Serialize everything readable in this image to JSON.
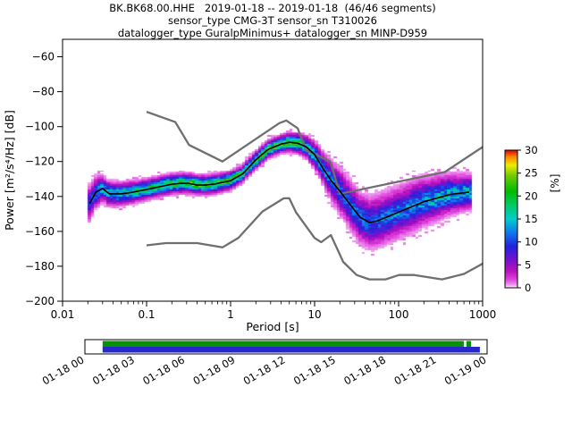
{
  "chart_data": {
    "type": "heatmap",
    "title": "BK.BK68.00.HHE   2019-01-18 -- 2019-01-18  (46/46 segments)",
    "subtitle_sensor": "sensor_type CMG-3T sensor_sn T310026",
    "subtitle_datalogger": "datalogger_type GuralpMinimus+ datalogger_sn MINP-D959",
    "xlabel": "Period [s]",
    "ylabel": "Power [m²/s⁴/Hz] [dB]",
    "xscale": "log",
    "xlim": [
      0.01,
      1000
    ],
    "ylim": [
      -200,
      -50
    ],
    "xticks": [
      0.01,
      0.1,
      1,
      10,
      100,
      1000
    ],
    "yticks": [
      -200,
      -180,
      -160,
      -140,
      -120,
      -100,
      -80,
      -60
    ],
    "colorbar": {
      "label": "[%]",
      "min": 0,
      "max": 30,
      "ticks": [
        0,
        5,
        10,
        15,
        20,
        25,
        30
      ]
    },
    "colormap": [
      [
        0.0,
        "#ffffff"
      ],
      [
        0.02,
        "#ee99ee"
      ],
      [
        0.06,
        "#dd44dd"
      ],
      [
        0.12,
        "#bb11bb"
      ],
      [
        0.2,
        "#7711cc"
      ],
      [
        0.3,
        "#2222dd"
      ],
      [
        0.4,
        "#1177ee"
      ],
      [
        0.5,
        "#00cccc"
      ],
      [
        0.6,
        "#00cc66"
      ],
      [
        0.7,
        "#00bb00"
      ],
      [
        0.82,
        "#77cc00"
      ],
      [
        0.89,
        "#eeee00"
      ],
      [
        0.95,
        "#ff8800"
      ],
      [
        1.0,
        "#dd0000"
      ]
    ],
    "mode_line": [
      [
        0.021,
        -144
      ],
      [
        0.025,
        -137.5
      ],
      [
        0.03,
        -135.5
      ],
      [
        0.036,
        -138.5
      ],
      [
        0.05,
        -138.5
      ],
      [
        0.07,
        -137.5
      ],
      [
        0.1,
        -136
      ],
      [
        0.14,
        -134.5
      ],
      [
        0.2,
        -133
      ],
      [
        0.25,
        -132.5
      ],
      [
        0.32,
        -132.5
      ],
      [
        0.4,
        -133.5
      ],
      [
        0.5,
        -133.5
      ],
      [
        0.63,
        -133
      ],
      [
        0.79,
        -132
      ],
      [
        1.0,
        -131
      ],
      [
        1.4,
        -127
      ],
      [
        2.0,
        -119
      ],
      [
        2.8,
        -113
      ],
      [
        4.0,
        -110
      ],
      [
        5.0,
        -109
      ],
      [
        6.3,
        -109.5
      ],
      [
        7.9,
        -111.5
      ],
      [
        10,
        -116
      ],
      [
        12.6,
        -124
      ],
      [
        15.8,
        -131
      ],
      [
        20,
        -137
      ],
      [
        25,
        -143
      ],
      [
        30,
        -148
      ],
      [
        35,
        -152
      ],
      [
        45,
        -155
      ],
      [
        56,
        -154
      ],
      [
        71,
        -152
      ],
      [
        100,
        -149
      ],
      [
        141,
        -146
      ],
      [
        200,
        -143
      ],
      [
        282,
        -141
      ],
      [
        400,
        -139
      ],
      [
        560,
        -138
      ],
      [
        690,
        -137.5
      ]
    ],
    "noise_model_high": [
      [
        0.1,
        -91.5
      ],
      [
        0.22,
        -97.4
      ],
      [
        0.32,
        -110.5
      ],
      [
        0.8,
        -120.0
      ],
      [
        3.8,
        -98.0
      ],
      [
        4.6,
        -96.5
      ],
      [
        6.3,
        -101.0
      ],
      [
        7.9,
        -113.5
      ],
      [
        15.4,
        -120.0
      ],
      [
        20.0,
        -138.5
      ],
      [
        354.8,
        -126.0
      ],
      [
        1000,
        -111.7
      ]
    ],
    "noise_model_low": [
      [
        0.1,
        -168.0
      ],
      [
        0.17,
        -166.7
      ],
      [
        0.4,
        -166.7
      ],
      [
        0.8,
        -169.2
      ],
      [
        1.24,
        -163.7
      ],
      [
        2.4,
        -148.6
      ],
      [
        4.3,
        -141.1
      ],
      [
        5.0,
        -141.1
      ],
      [
        6.0,
        -149.0
      ],
      [
        10.0,
        -163.8
      ],
      [
        12.0,
        -166.2
      ],
      [
        15.6,
        -162.1
      ],
      [
        21.9,
        -177.5
      ],
      [
        31.6,
        -185.0
      ],
      [
        45.0,
        -187.5
      ],
      [
        70.0,
        -187.5
      ],
      [
        101.0,
        -185.0
      ],
      [
        154.0,
        -185.0
      ],
      [
        328.0,
        -187.5
      ],
      [
        600.0,
        -184.4
      ],
      [
        1000,
        -178.5
      ]
    ],
    "histogram": {
      "log10_period_start": -1.7,
      "log10_period_end": 2.85,
      "log10_period_step": 0.0375,
      "db_bin_width": 1,
      "sigma_profile": [
        [
          -1.72,
          5.0
        ],
        [
          -1.5,
          3.2
        ],
        [
          -1.0,
          2.6
        ],
        [
          0.0,
          2.4
        ],
        [
          0.6,
          2.2
        ],
        [
          0.9,
          2.8
        ],
        [
          1.1,
          4.2
        ],
        [
          1.3,
          6.0
        ],
        [
          1.7,
          6.8
        ],
        [
          2.2,
          6.5
        ],
        [
          2.86,
          4.5
        ]
      ],
      "peak_percent_profile": [
        [
          -1.72,
          8
        ],
        [
          -1.55,
          13
        ],
        [
          -1.3,
          16
        ],
        [
          -1.0,
          19
        ],
        [
          -0.5,
          21
        ],
        [
          0.0,
          20
        ],
        [
          0.3,
          20
        ],
        [
          0.6,
          22
        ],
        [
          0.9,
          18
        ],
        [
          1.1,
          13
        ],
        [
          1.3,
          11
        ],
        [
          1.7,
          11
        ],
        [
          2.1,
          12
        ],
        [
          2.5,
          14
        ],
        [
          2.86,
          14
        ]
      ],
      "random_seed": 7
    }
  },
  "timeline": {
    "tick_labels": [
      "01-18 00",
      "01-18 03",
      "01-18 06",
      "01-18 09",
      "01-18 12",
      "01-18 15",
      "01-18 18",
      "01-18 21",
      "01-19 00"
    ],
    "coverage_color": "#0a8f0a",
    "data_color": "#2626cc",
    "green_segments": [
      [
        0.044,
        0.942
      ],
      [
        0.949,
        0.96
      ]
    ],
    "blue_segments": [
      [
        0.044,
        0.982
      ]
    ]
  }
}
